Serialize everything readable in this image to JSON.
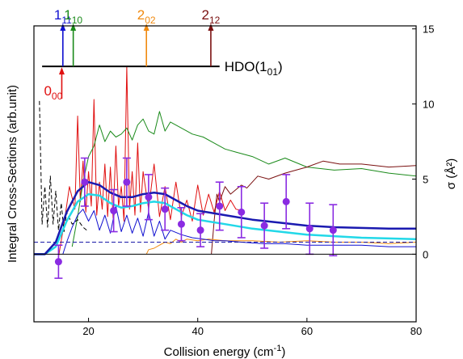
{
  "chart_data": {
    "type": "line",
    "xlabel": "Collision energy (cm",
    "xlabel_sup": "-1",
    "xlabel_tail": ")",
    "ylabel_left": "Integral Cross-Sections (arb.unit)",
    "ylabel_right": "σ (Å²)",
    "x_range": [
      10,
      80
    ],
    "x_ticks": [
      20,
      40,
      60,
      80
    ],
    "y_right_range": [
      -4.5,
      15.2
    ],
    "y_right_ticks": [
      0,
      5,
      10,
      15
    ],
    "grid": false,
    "legend": "none",
    "energy_levels": {
      "baseline_label_main": "HDO(1",
      "baseline_label_sub": "01",
      "baseline_label_tail": ")",
      "baseline_range": [
        11.5,
        44
      ],
      "baseline_y": 12.5,
      "levels": [
        {
          "main": "1",
          "sub": "11",
          "x": 15.3,
          "color": "#1010d0",
          "direction": "up"
        },
        {
          "main": "1",
          "sub": "10",
          "x": 17.2,
          "color": "#1a8a1a",
          "direction": "up"
        },
        {
          "main": "2",
          "sub": "02",
          "x": 30.6,
          "color": "#f08a10",
          "direction": "up"
        },
        {
          "main": "2",
          "sub": "12",
          "x": 42.4,
          "color": "#7a1010",
          "direction": "up"
        },
        {
          "main": "0",
          "sub": "00",
          "x": 15.1,
          "color": "#e01010",
          "direction": "down"
        }
      ]
    },
    "series": [
      {
        "color": "#e01010",
        "width": 1,
        "dash": false,
        "style": "noisy",
        "line_label": "",
        "x": [
          14.5,
          15.5,
          16.5,
          17.5,
          18.0,
          18.5,
          19.0,
          19.5,
          20.0,
          20.5,
          21.0,
          21.5,
          22.0,
          22.5,
          23.0,
          23.5,
          24.0,
          24.5,
          25.0,
          25.5,
          26.0,
          26.5,
          27.0,
          27.5,
          28.0,
          28.5,
          29.0,
          29.5,
          30.0,
          31.0,
          32.0,
          33.0,
          34.0,
          35.0,
          36.0,
          37.0,
          38.0,
          39.0,
          40.0,
          41.0,
          42.0,
          43.0,
          44.0,
          45.0,
          46.0,
          47.0,
          48.0
        ],
        "y": [
          -0.2,
          2.0,
          4.5,
          3.0,
          9.2,
          3.5,
          6.2,
          2.8,
          5.5,
          3.2,
          10.3,
          2.6,
          4.8,
          3.0,
          6.0,
          2.5,
          5.8,
          2.4,
          7.2,
          3.2,
          4.5,
          2.2,
          12.5,
          3.0,
          5.5,
          2.6,
          7.4,
          2.8,
          5.5,
          3.0,
          6.0,
          2.5,
          4.5,
          2.3,
          4.8,
          2.5,
          3.6,
          2.2,
          4.6,
          2.6,
          4.0,
          2.8,
          4.2,
          2.9,
          3.6,
          3.0,
          2.9
        ]
      },
      {
        "color": "#1a8a1a",
        "width": 1,
        "dash": false,
        "style": "noisy",
        "line_label": "",
        "x": [
          17.0,
          18.0,
          19.0,
          20.0,
          21.0,
          22.0,
          23.0,
          24.0,
          25.0,
          26.0,
          27.0,
          28.0,
          29.0,
          30.0,
          31.0,
          32.0,
          33.0,
          34.0,
          35.0,
          37.0,
          39.0,
          41.0,
          43.0,
          45.0,
          47.0,
          50.0,
          53.0,
          56.0,
          60.0,
          65.0,
          70.0,
          75.0,
          80.0
        ],
        "y": [
          0.5,
          2.5,
          4.8,
          6.5,
          7.2,
          8.6,
          7.5,
          8.2,
          7.8,
          8.0,
          8.4,
          7.6,
          8.6,
          9.0,
          8.2,
          8.0,
          9.5,
          8.2,
          8.8,
          8.4,
          8.0,
          7.8,
          7.4,
          7.0,
          6.8,
          6.5,
          6.0,
          6.4,
          5.8,
          5.6,
          5.7,
          5.4,
          5.2
        ]
      },
      {
        "color": "#7a1010",
        "width": 1,
        "dash": false,
        "style": "noisy",
        "line_label": "",
        "x": [
          42.5,
          43.0,
          43.5,
          44.0,
          45.0,
          46.0,
          47.0,
          48.0,
          49.0,
          51.0,
          53.0,
          56.0,
          60.0,
          63.0,
          66.0,
          70.0,
          75.0,
          80.0
        ],
        "y": [
          0.0,
          2.2,
          4.0,
          3.5,
          4.5,
          4.0,
          4.3,
          4.6,
          4.4,
          5.2,
          5.0,
          5.4,
          5.8,
          6.2,
          6.0,
          6.0,
          5.8,
          5.9
        ]
      },
      {
        "color": "#f08a10",
        "width": 1,
        "dash": false,
        "style": "noisy",
        "line_label": "",
        "x": [
          30.6,
          31.0,
          32.0,
          33.0,
          34.0,
          35.0,
          36.0,
          37.0,
          38.0,
          40.0,
          42.0,
          45.0,
          50.0,
          55.0,
          60.0,
          65.0,
          70.0,
          75.0,
          80.0
        ],
        "y": [
          0.0,
          0.3,
          0.4,
          0.6,
          0.8,
          0.7,
          1.0,
          0.8,
          1.0,
          0.9,
          1.0,
          0.9,
          0.9,
          0.8,
          0.9,
          0.8,
          0.8,
          0.7,
          0.8
        ]
      },
      {
        "color": "#1010d0",
        "width": 1,
        "dash": false,
        "style": "noisy",
        "line_label": "",
        "x": [
          15.3,
          16.0,
          17.0,
          18.0,
          19.0,
          20.0,
          21.0,
          22.0,
          23.0,
          24.0,
          25.0,
          26.0,
          27.0,
          28.0,
          29.0,
          30.0,
          31.0,
          32.0,
          33.0,
          34.0,
          35.0,
          37.0,
          39.0,
          41.0,
          43.0,
          45.0,
          48.0,
          52.0,
          56.0,
          60.0,
          65.0,
          70.0,
          75.0,
          80.0
        ],
        "y": [
          0.0,
          0.8,
          1.8,
          2.6,
          3.0,
          2.2,
          2.9,
          1.6,
          2.6,
          1.4,
          3.2,
          1.5,
          2.6,
          1.4,
          2.4,
          1.2,
          2.8,
          1.2,
          2.2,
          1.0,
          1.6,
          1.3,
          1.1,
          1.0,
          0.9,
          0.9,
          0.8,
          0.7,
          0.7,
          0.6,
          0.6,
          0.6,
          0.5,
          0.5
        ]
      },
      {
        "color": "#000000",
        "width": 1,
        "dash": true,
        "style": "noisy",
        "line_label": "",
        "x": [
          11.0,
          11.5,
          12.0,
          12.5,
          13.0,
          13.5,
          14.0,
          14.5,
          15.0,
          15.5,
          16.0,
          17.0,
          18.0,
          19.0,
          20.0
        ],
        "y": [
          10.2,
          2.0,
          4.5,
          1.8,
          5.2,
          2.0,
          4.2,
          1.6,
          3.4,
          1.5,
          2.8,
          2.0,
          2.3,
          1.8,
          1.5
        ]
      },
      {
        "color": "#1a1aa8",
        "width": 1,
        "dash": true,
        "style": "smooth",
        "line_label": "",
        "x": [
          10.0,
          20.0,
          30.0,
          40.0,
          50.0,
          60.0,
          70.0,
          80.0
        ],
        "y": [
          0.8,
          0.8,
          0.8,
          0.8,
          0.8,
          0.8,
          0.8,
          0.8
        ]
      },
      {
        "color": "#22d8e8",
        "width": 2.5,
        "dash": false,
        "style": "smooth",
        "line_label": "",
        "x": [
          10.0,
          12.0,
          14.0,
          16.0,
          18.0,
          20.0,
          22.0,
          24.0,
          26.0,
          28.0,
          30.0,
          32.0,
          34.0,
          36.0,
          38.0,
          40.0,
          45.0,
          50.0,
          55.0,
          60.0,
          65.0,
          70.0,
          75.0,
          80.0
        ],
        "y": [
          0.0,
          0.0,
          0.5,
          2.2,
          3.5,
          4.0,
          3.9,
          3.4,
          3.1,
          3.2,
          3.4,
          3.5,
          3.4,
          3.0,
          2.6,
          2.3,
          2.0,
          1.7,
          1.5,
          1.3,
          1.2,
          1.1,
          1.05,
          1.0
        ]
      },
      {
        "color": "#1a1ab0",
        "width": 2.5,
        "dash": false,
        "style": "smooth",
        "line_label": "",
        "x": [
          10.0,
          12.0,
          14.0,
          16.0,
          18.0,
          20.0,
          22.0,
          24.0,
          26.0,
          28.0,
          30.0,
          32.0,
          34.0,
          36.0,
          38.0,
          40.0,
          45.0,
          50.0,
          55.0,
          60.0,
          65.0,
          70.0,
          75.0,
          80.0
        ],
        "y": [
          0.0,
          0.0,
          0.8,
          2.8,
          4.2,
          4.8,
          4.6,
          4.1,
          3.8,
          3.8,
          4.0,
          4.1,
          4.0,
          3.6,
          3.2,
          2.9,
          2.6,
          2.3,
          2.1,
          1.9,
          1.8,
          1.75,
          1.7,
          1.7
        ]
      }
    ],
    "scatter": {
      "color": "#8a2be2",
      "errorbar_color": "#8a2be2",
      "points": [
        {
          "x": 14.5,
          "y": -0.5,
          "err": 1.1
        },
        {
          "x": 19.3,
          "y": 4.8,
          "err": 1.6
        },
        {
          "x": 24.6,
          "y": 2.9,
          "err": 1.4
        },
        {
          "x": 27.0,
          "y": 4.8,
          "err": 1.6
        },
        {
          "x": 31.0,
          "y": 3.8,
          "err": 1.5
        },
        {
          "x": 34.0,
          "y": 3.0,
          "err": 1.4
        },
        {
          "x": 37.0,
          "y": 2.0,
          "err": 1.1
        },
        {
          "x": 40.5,
          "y": 1.6,
          "err": 1.1
        },
        {
          "x": 44.0,
          "y": 3.2,
          "err": 1.6
        },
        {
          "x": 48.0,
          "y": 2.8,
          "err": 1.7
        },
        {
          "x": 52.2,
          "y": 1.9,
          "err": 1.5
        },
        {
          "x": 56.2,
          "y": 3.5,
          "err": 1.8
        },
        {
          "x": 60.5,
          "y": 1.7,
          "err": 1.7
        },
        {
          "x": 64.8,
          "y": 1.6,
          "err": 1.7
        }
      ]
    }
  }
}
